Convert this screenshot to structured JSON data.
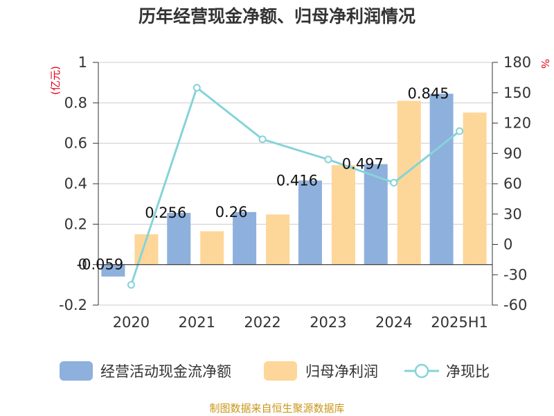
{
  "title": "历年经营现金净额、归母净利润情况",
  "source": "制图数据来自恒生聚源数据库",
  "colors": {
    "cash": "#8eb0dc",
    "profit": "#fdd699",
    "ratio": "#86d3d9",
    "grid": "#cccccc",
    "axis": "#333333",
    "unit": "#e60012",
    "source": "#c9971a"
  },
  "chart_data": {
    "type": "bar",
    "title": "历年经营现金净额、归母净利润情况",
    "categories": [
      "2020",
      "2021",
      "2022",
      "2023",
      "2024",
      "2025H1"
    ],
    "y_left": {
      "unit": "(亿元)",
      "range": [
        -0.2,
        1
      ],
      "ticks": [
        -0.2,
        0,
        0.2,
        0.4,
        0.6,
        0.8,
        1
      ],
      "tick_labels": [
        "-0.2",
        "0",
        "0.2",
        "0.4",
        "0.6",
        "0.8",
        "1"
      ]
    },
    "y_right": {
      "unit": "%",
      "range": [
        -60,
        180
      ],
      "ticks": [
        -60,
        -30,
        0,
        30,
        60,
        90,
        120,
        150,
        180
      ],
      "tick_labels": [
        "-60",
        "-30",
        "0",
        "30",
        "60",
        "90",
        "120",
        "150",
        "180"
      ]
    },
    "series": [
      {
        "name": "经营活动现金流净额",
        "type": "bar",
        "axis": "left",
        "values": [
          -0.059,
          0.256,
          0.26,
          0.416,
          0.497,
          0.845
        ],
        "labels": [
          "-0.059",
          "0.256",
          "0.26",
          "0.416",
          "0.497",
          "0.845"
        ]
      },
      {
        "name": "归母净利润",
        "type": "bar",
        "axis": "left",
        "values": [
          0.15,
          0.165,
          0.248,
          0.492,
          0.81,
          0.752
        ]
      },
      {
        "name": "净现比",
        "type": "line",
        "axis": "right",
        "values": [
          -40,
          155,
          104,
          84,
          61,
          112
        ]
      }
    ],
    "legend": {
      "position": "bottom"
    },
    "grid": true
  }
}
